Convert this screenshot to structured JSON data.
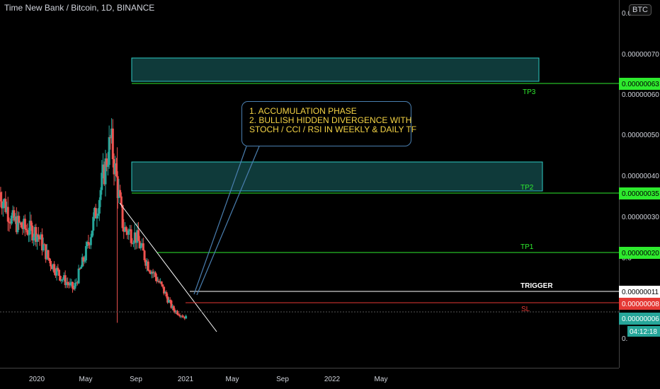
{
  "header": {
    "title": "Time New Bank / Bitcoin, 1D, BINANCE",
    "currency": "BTC"
  },
  "annotation": {
    "lines": [
      "1. ACCUMULATION PHASE",
      "2. BULLISH HIDDEN DIVERGENCE WITH",
      "STOCH / CCI / RSI IN WEEKLY & DAILY TF"
    ]
  },
  "price_tags": {
    "tp3": "0.00000063",
    "tp2": "0.00000035",
    "tp1": "0.00000020",
    "trigger": "0.00000011",
    "sl": "0.00000008",
    "last": "0.00000006",
    "countdown": "04:12:18"
  },
  "colors": {
    "up": "#26a69a",
    "down": "#ef5350",
    "target_line": "#2eea2e",
    "trigger_line": "#ffffff",
    "sl_line": "#e53935",
    "zone_fill": "#0f3a3a",
    "zone_border": "#2ecbc4",
    "callout_text": "#f5d445",
    "callout_border": "#4a7fb0"
  },
  "chart_data": {
    "type": "candlestick",
    "title": "Time New Bank / Bitcoin, 1D, BINANCE",
    "x_axis": {
      "type": "date",
      "ticks": [
        "2020",
        "May",
        "Sep",
        "2021",
        "May",
        "Sep",
        "2022",
        "May"
      ]
    },
    "y_axis": {
      "ticks": [
        "0.00000070",
        "0.00000060",
        "0.00000050",
        "0.00000040",
        "0.00000030"
      ],
      "partial_labels": [
        "0.0",
        "0.0",
        "0."
      ],
      "range": [
        0,
        8e-07
      ]
    },
    "levels": [
      {
        "name": "TP3",
        "value": 6.3e-07
      },
      {
        "name": "TP2",
        "value": 3.5e-07
      },
      {
        "name": "TP1",
        "value": 2e-07
      },
      {
        "name": "TRIGGER",
        "value": 1.1e-07
      },
      {
        "name": "SL",
        "value": 8e-08
      }
    ],
    "target_zones": [
      {
        "from": 6.4e-07,
        "to": 6.7e-07
      },
      {
        "from": 3.5e-07,
        "to": 4.1e-07
      }
    ],
    "last_price": 6e-08,
    "price_path": [
      [
        "2019-10",
        3.7e-07
      ],
      [
        "2019-11",
        3e-07
      ],
      [
        "2019-12",
        2.8e-07
      ],
      [
        "2020-01",
        2.7e-07
      ],
      [
        "2020-02",
        2e-07
      ],
      [
        "2020-03",
        1.6e-07
      ],
      [
        "2020-04",
        1.3e-07
      ],
      [
        "2020-05",
        2.2e-07
      ],
      [
        "2020-06",
        3.5e-07
      ],
      [
        "2020-07",
        5e-07
      ],
      [
        "2020-08",
        2.8e-07
      ],
      [
        "2020-09",
        2.6e-07
      ],
      [
        "2020-10",
        1.9e-07
      ],
      [
        "2020-11",
        1.4e-07
      ],
      [
        "2020-12",
        8e-08
      ],
      [
        "2021-01",
        6e-08
      ]
    ],
    "trendline": "descending from the summer 2020 high to the early 2021 low"
  }
}
